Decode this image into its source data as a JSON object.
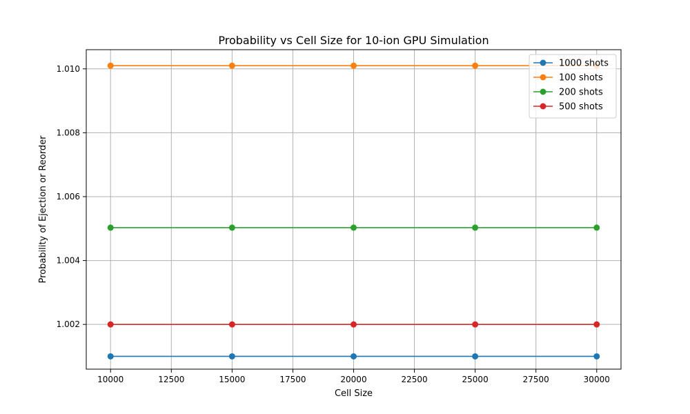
{
  "chart_data": {
    "type": "line",
    "title": "Probability vs Cell Size for 10-ion GPU Simulation",
    "xlabel": "Cell Size",
    "ylabel": "Probability of Ejection or Reorder",
    "xlim": [
      9000,
      31000
    ],
    "ylim": [
      1.0006,
      1.0106
    ],
    "x": [
      10000,
      15000,
      20000,
      25000,
      30000
    ],
    "x_ticks": [
      10000,
      12500,
      15000,
      17500,
      20000,
      22500,
      25000,
      27500,
      30000
    ],
    "y_ticks": [
      1.002,
      1.004,
      1.006,
      1.008,
      1.01
    ],
    "y_tick_labels": [
      "1.002",
      "1.004",
      "1.006",
      "1.008",
      "1.010"
    ],
    "grid": true,
    "legend_position": "top-right",
    "series": [
      {
        "name": "1000 shots",
        "color": "#1f77b4",
        "values": [
          1.001,
          1.001,
          1.001,
          1.001,
          1.001
        ]
      },
      {
        "name": "100 shots",
        "color": "#ff7f0e",
        "values": [
          1.0101,
          1.0101,
          1.0101,
          1.0101,
          1.0101
        ]
      },
      {
        "name": "200 shots",
        "color": "#2ca02c",
        "values": [
          1.00503,
          1.00503,
          1.00503,
          1.00503,
          1.00503
        ]
      },
      {
        "name": "500 shots",
        "color": "#d62728",
        "values": [
          1.002,
          1.002,
          1.002,
          1.002,
          1.002
        ]
      }
    ]
  }
}
